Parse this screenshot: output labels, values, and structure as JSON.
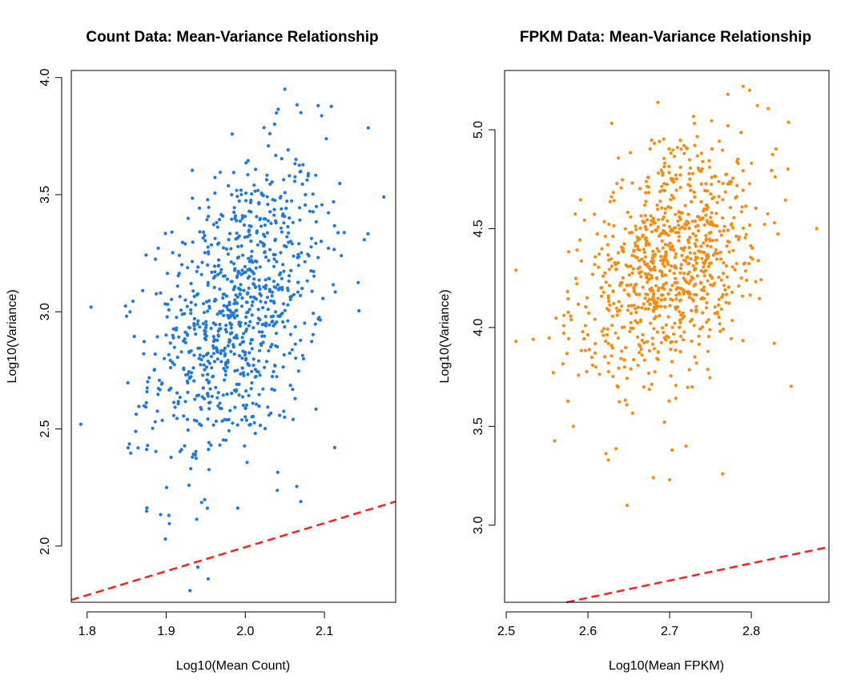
{
  "chart_data": [
    {
      "type": "scatter",
      "title": "Count Data: Mean-Variance Relationship",
      "xlabel": "Log10(Mean Count)",
      "ylabel": "Log10(Variance)",
      "xlim": [
        1.78,
        2.19
      ],
      "ylim": [
        1.76,
        4.03
      ],
      "xticks": [
        "1.8",
        "1.9",
        "2.0",
        "2.1"
      ],
      "yticks": [
        "2.0",
        "2.5",
        "3.0",
        "3.5",
        "4.0"
      ],
      "point_color": "#1f78e0",
      "n_points": 900,
      "cloud": {
        "mean_x": 1.99,
        "sd_x": 0.055,
        "mean_y": 3.0,
        "sd_y": 0.33,
        "correlation": 0.38
      },
      "outliers": [
        {
          "x": 2.05,
          "y": 3.95
        },
        {
          "x": 2.092,
          "y": 3.88
        },
        {
          "x": 2.175,
          "y": 3.49
        },
        {
          "x": 1.792,
          "y": 2.52
        },
        {
          "x": 1.805,
          "y": 3.02
        },
        {
          "x": 1.93,
          "y": 1.81
        },
        {
          "x": 1.953,
          "y": 1.86
        },
        {
          "x": 1.94,
          "y": 1.91
        },
        {
          "x": 2.113,
          "y": 2.42
        },
        {
          "x": 2.07,
          "y": 2.19
        },
        {
          "x": 1.899,
          "y": 2.03
        }
      ],
      "reference_line": {
        "label": "dashed",
        "color": "#ff2020",
        "from": {
          "x": 1.78,
          "y": 1.77
        },
        "to": {
          "x": 2.19,
          "y": 2.19
        }
      }
    },
    {
      "type": "scatter",
      "title": "FPKM Data: Mean-Variance Relationship",
      "xlabel": "Log10(Mean FPKM)",
      "ylabel": "Log10(Variance)",
      "xlim": [
        2.498,
        2.895
      ],
      "ylim": [
        2.61,
        5.3
      ],
      "xticks": [
        "2.5",
        "2.6",
        "2.7",
        "2.8"
      ],
      "yticks": [
        "3.0",
        "3.5",
        "4.0",
        "4.5",
        "5.0"
      ],
      "point_color": "#f98b0f",
      "n_points": 900,
      "cloud": {
        "mean_x": 2.7,
        "sd_x": 0.055,
        "mean_y": 4.32,
        "sd_y": 0.3,
        "correlation": 0.38
      },
      "outliers": [
        {
          "x": 2.512,
          "y": 4.29
        },
        {
          "x": 2.512,
          "y": 3.93
        },
        {
          "x": 2.533,
          "y": 3.94
        },
        {
          "x": 2.88,
          "y": 4.5
        },
        {
          "x": 2.648,
          "y": 3.1
        },
        {
          "x": 2.625,
          "y": 3.33
        },
        {
          "x": 2.7,
          "y": 3.23
        },
        {
          "x": 2.68,
          "y": 3.24
        },
        {
          "x": 2.765,
          "y": 3.26
        },
        {
          "x": 2.72,
          "y": 3.4
        },
        {
          "x": 2.703,
          "y": 3.38
        },
        {
          "x": 2.79,
          "y": 5.22
        },
        {
          "x": 2.798,
          "y": 5.2
        },
        {
          "x": 2.828,
          "y": 3.92
        }
      ],
      "reference_line": {
        "label": "dashed",
        "color": "#ff2020",
        "from": {
          "x": 2.498,
          "y": 2.544
        },
        "to": {
          "x": 2.895,
          "y": 2.89
        }
      }
    }
  ]
}
